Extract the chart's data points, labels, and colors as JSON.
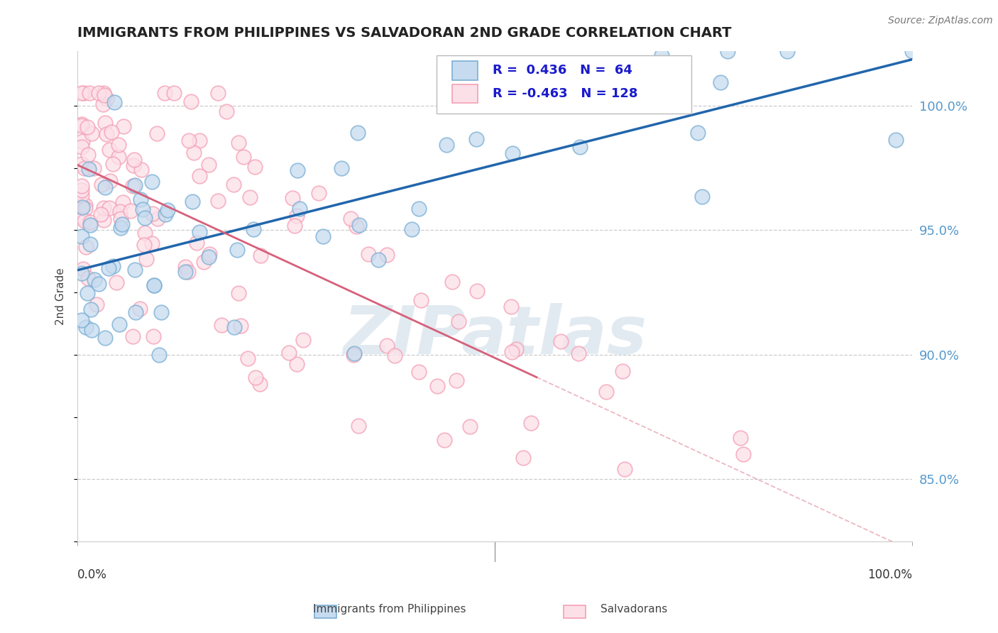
{
  "title": "IMMIGRANTS FROM PHILIPPINES VS SALVADORAN 2ND GRADE CORRELATION CHART",
  "source_text": "Source: ZipAtlas.com",
  "ylabel": "2nd Grade",
  "legend_blue_label": "Immigrants from Philippines",
  "legend_pink_label": "Salvadorans",
  "blue_R": 0.436,
  "blue_N": 64,
  "pink_R": -0.463,
  "pink_N": 128,
  "blue_edge_color": "#7bafd4",
  "pink_edge_color": "#f4a0b5",
  "blue_face_color": "#c6dbef",
  "pink_face_color": "#fce0e8",
  "blue_line_color": "#2166ac",
  "pink_line_color": "#d6607a",
  "right_axis_color": "#5599cc",
  "ytick_positions": [
    0.85,
    0.9,
    0.95,
    1.0
  ],
  "xlim": [
    0.0,
    1.0
  ],
  "ylim": [
    0.825,
    1.022
  ],
  "watermark": "ZIPatlas",
  "title_fontsize": 14,
  "seed": 99
}
